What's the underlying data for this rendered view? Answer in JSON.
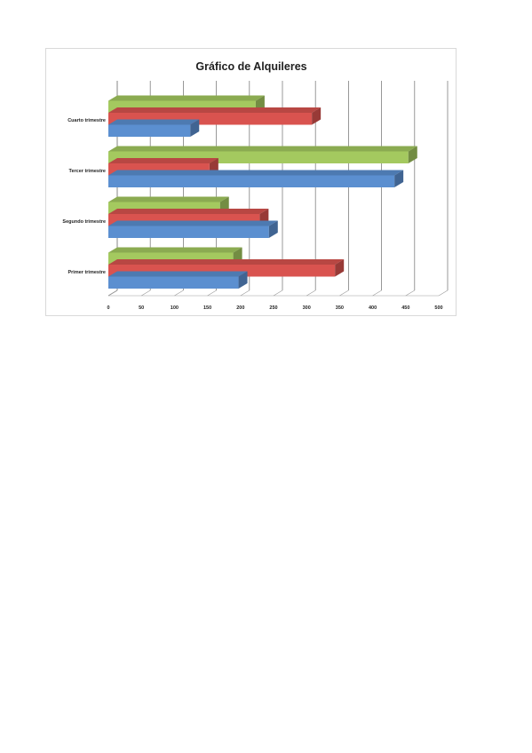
{
  "chart_data": {
    "type": "bar",
    "orientation": "horizontal",
    "style": "3d-clustered",
    "title": "Gráfico de Alquileres",
    "categories": [
      "Primer trimestre",
      "Segundo trimestre",
      "Tercer trimestre",
      "Cuarto trimestre"
    ],
    "series": [
      {
        "color": "#5b8fd0",
        "values": [
          197,
          243,
          433,
          124
        ]
      },
      {
        "color": "#d9534f",
        "values": [
          343,
          229,
          153,
          308
        ]
      },
      {
        "color": "#a4c95f",
        "values": [
          189,
          169,
          454,
          223
        ]
      }
    ],
    "xlim": [
      0,
      500
    ],
    "xticks": [
      "0",
      "50",
      "100",
      "150",
      "200",
      "250",
      "300",
      "350",
      "400",
      "450",
      "500"
    ],
    "grid": true,
    "legend": "none"
  }
}
